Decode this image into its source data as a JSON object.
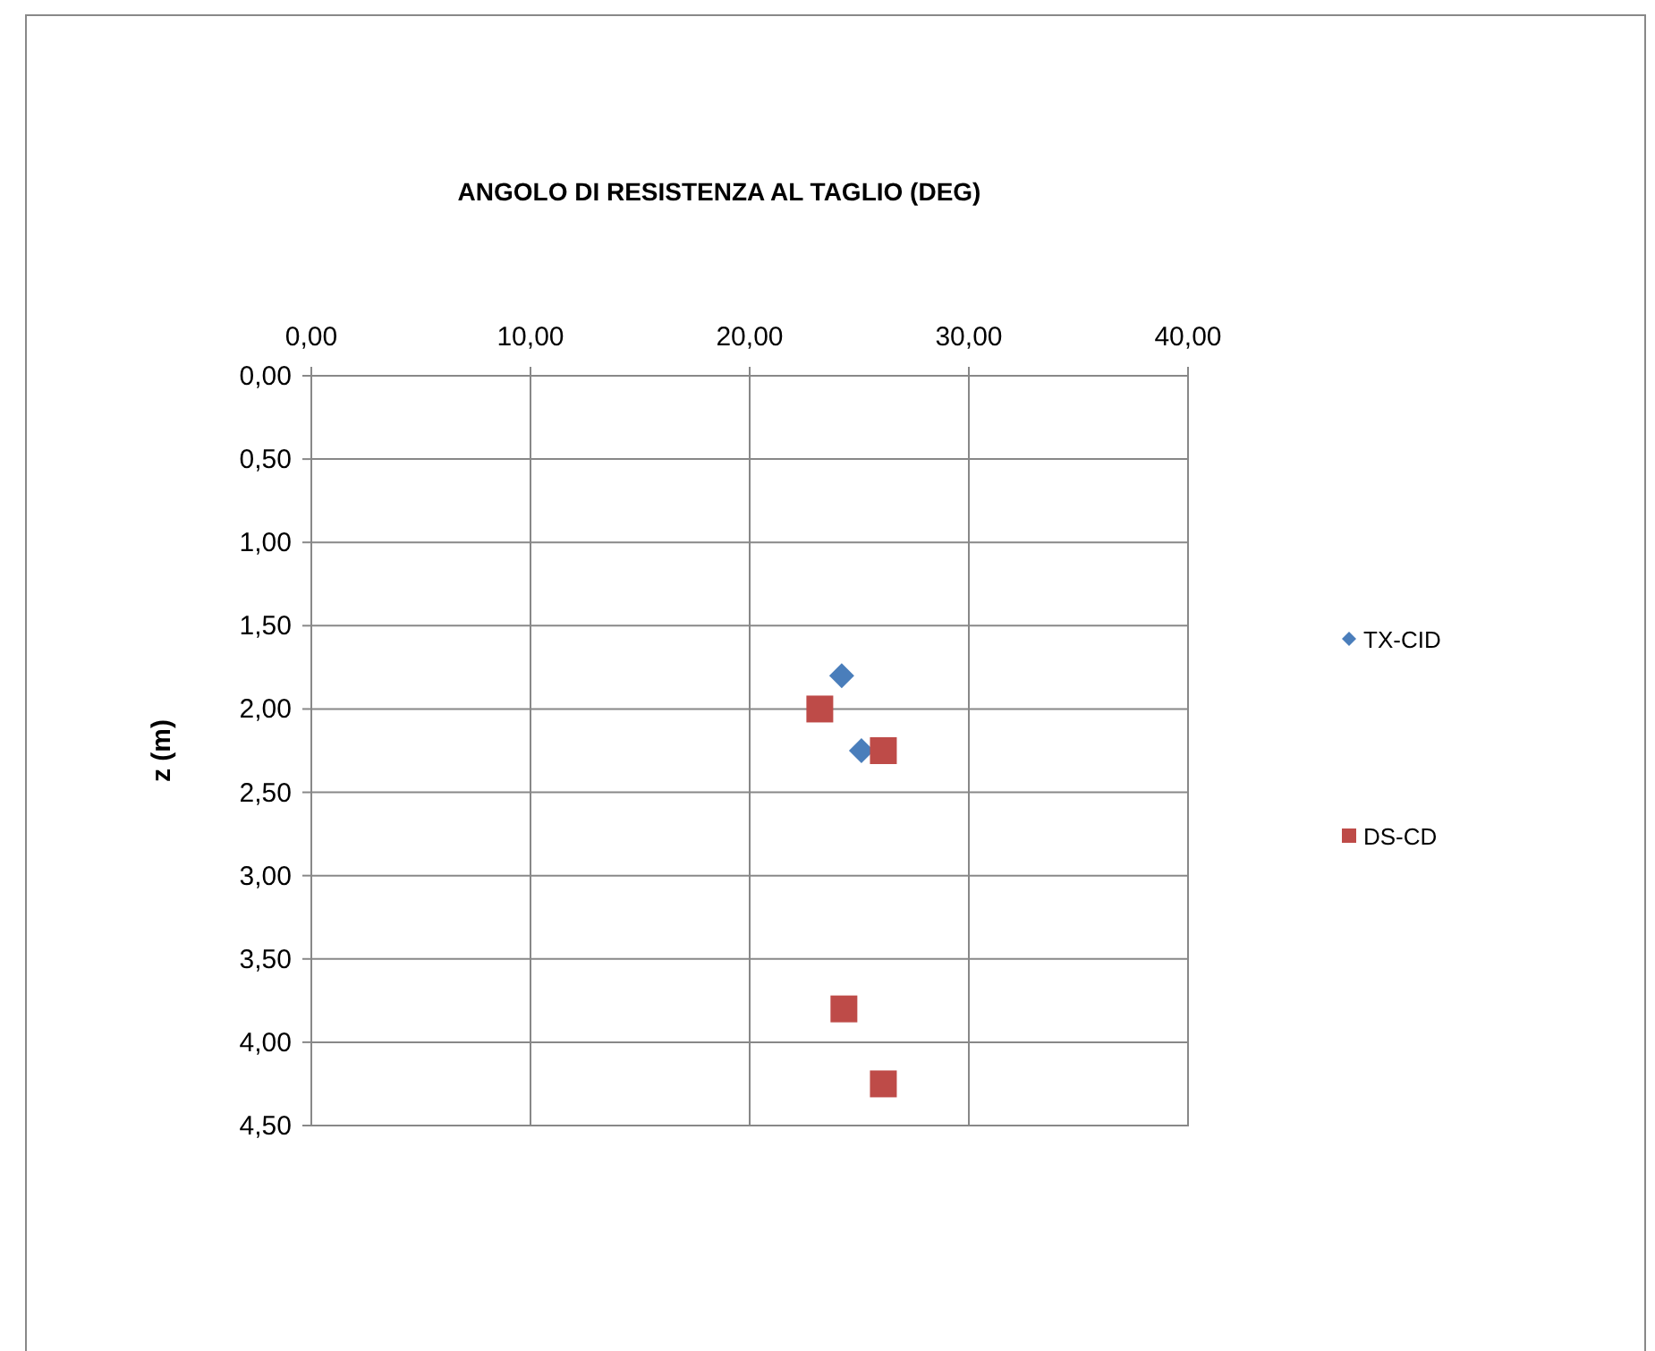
{
  "chart_data": {
    "type": "scatter",
    "title": "ANGOLO DI RESISTENZA AL TAGLIO (DEG)",
    "ylabel": "z (m)",
    "xlim": [
      0,
      40
    ],
    "xticks": [
      {
        "value": 0,
        "label": "0,00"
      },
      {
        "value": 10,
        "label": "10,00"
      },
      {
        "value": 20,
        "label": "20,00"
      },
      {
        "value": 30,
        "label": "30,00"
      },
      {
        "value": 40,
        "label": "40,00"
      }
    ],
    "ylim": [
      4.5,
      0
    ],
    "yticks": [
      {
        "value": 0,
        "label": "0,00"
      },
      {
        "value": 0.5,
        "label": "0,50"
      },
      {
        "value": 1,
        "label": "1,00"
      },
      {
        "value": 1.5,
        "label": "1,50"
      },
      {
        "value": 2,
        "label": "2,00"
      },
      {
        "value": 2.5,
        "label": "2,50"
      },
      {
        "value": 3,
        "label": "3,00"
      },
      {
        "value": 3.5,
        "label": "3,50"
      },
      {
        "value": 4,
        "label": "4,00"
      },
      {
        "value": 4.5,
        "label": "4,50"
      }
    ],
    "grid": true,
    "legend": "right",
    "series": [
      {
        "name": "TX-CID",
        "color": "#4a7ebb",
        "marker": "diamond",
        "x": [
          24.2,
          25.1
        ],
        "values": [
          1.8,
          2.25
        ]
      },
      {
        "name": "DS-CD",
        "color": "#be4b48",
        "marker": "square",
        "x": [
          23.2,
          26.1,
          24.3,
          26.1
        ],
        "values": [
          2.0,
          2.25,
          3.8,
          4.25
        ]
      }
    ]
  }
}
